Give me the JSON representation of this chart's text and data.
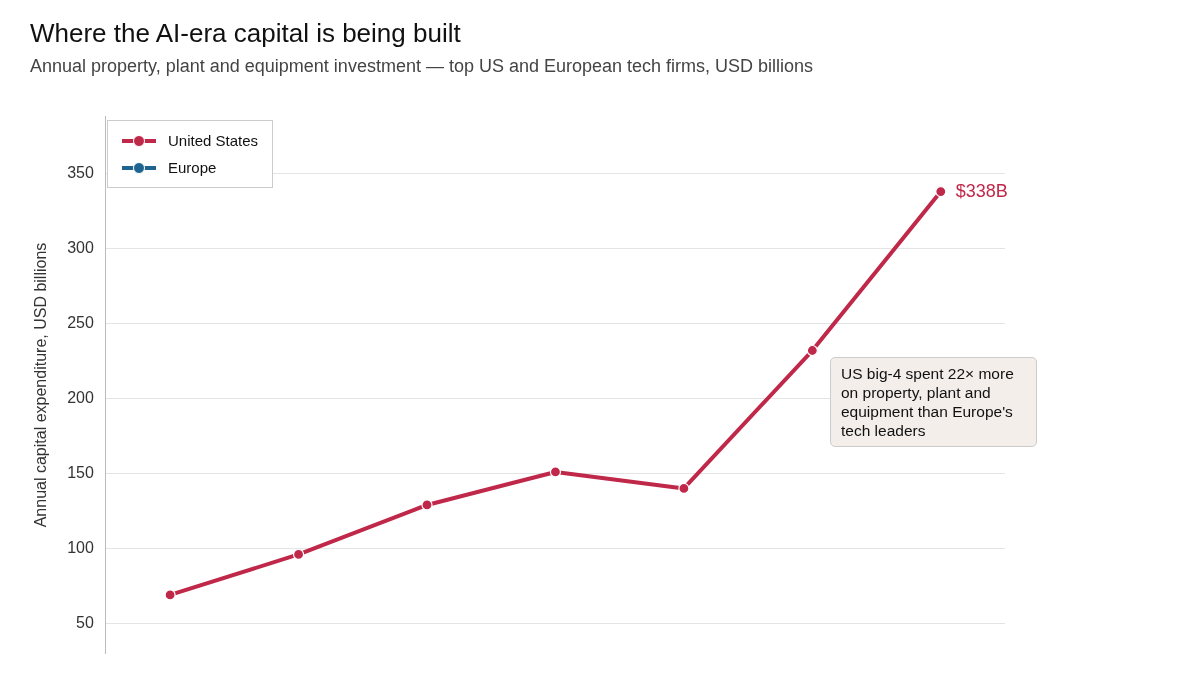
{
  "chart_data": {
    "type": "line",
    "title": "Where the AI-era capital is being built",
    "subtitle": "Annual property, plant and equipment investment — top US and European tech firms, USD billions",
    "ylabel": "Annual capital expenditure, USD billions",
    "categories": [
      null,
      null,
      null,
      null,
      null,
      null,
      null
    ],
    "series": [
      {
        "name": "United States",
        "color": "#c0284a",
        "values": [
          69,
          96,
          129,
          151,
          140,
          232,
          338
        ]
      },
      {
        "name": "Europe",
        "color": "#1f6391",
        "values": [
          null,
          null,
          null,
          null,
          null,
          null,
          null
        ]
      }
    ],
    "ylim": [
      30,
      388
    ],
    "yticks": [
      50,
      100,
      150,
      200,
      250,
      300,
      350
    ],
    "grid": "y",
    "legend": "top left",
    "marker": "circle",
    "line_style": "solid",
    "annotations": [
      "$338B",
      "US big-4 spent 22× more on property, plant and equipment than Europe's tech leaders"
    ]
  }
}
